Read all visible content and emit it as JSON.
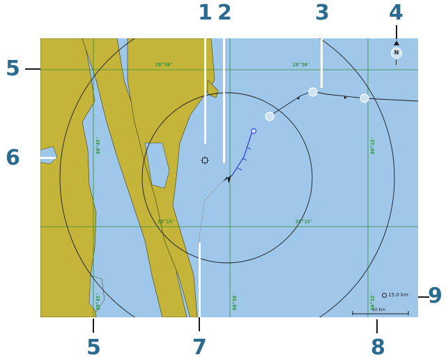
{
  "grid_labels": {
    "lat_top_left": "28°30'",
    "lat_top_right": "28°30'",
    "lat_mid_left": "28°15'",
    "lat_mid_right": "28°15'",
    "lon_left_upper": "80°45'",
    "lon_right_upper": "80°15'",
    "lon_left_lower": "80°45'",
    "lon_mid_lower": "80°30'",
    "lon_right_lower": "80°15'"
  },
  "callouts": {
    "n1": "1",
    "n2": "2",
    "n3": "3",
    "n4": "4",
    "n5_top": "5",
    "n5_bottom": "5",
    "n6": "6",
    "n7": "7",
    "n8": "8",
    "n9": "9"
  },
  "range_label": "15.0 km",
  "scale_label": "10 km",
  "north_letter": "N",
  "colors": {
    "water": "#9ec7ea",
    "land": "#c4b439",
    "grid": "#2f8f3a",
    "callout": "#2a6b8f",
    "route": "#3a4bd1"
  }
}
